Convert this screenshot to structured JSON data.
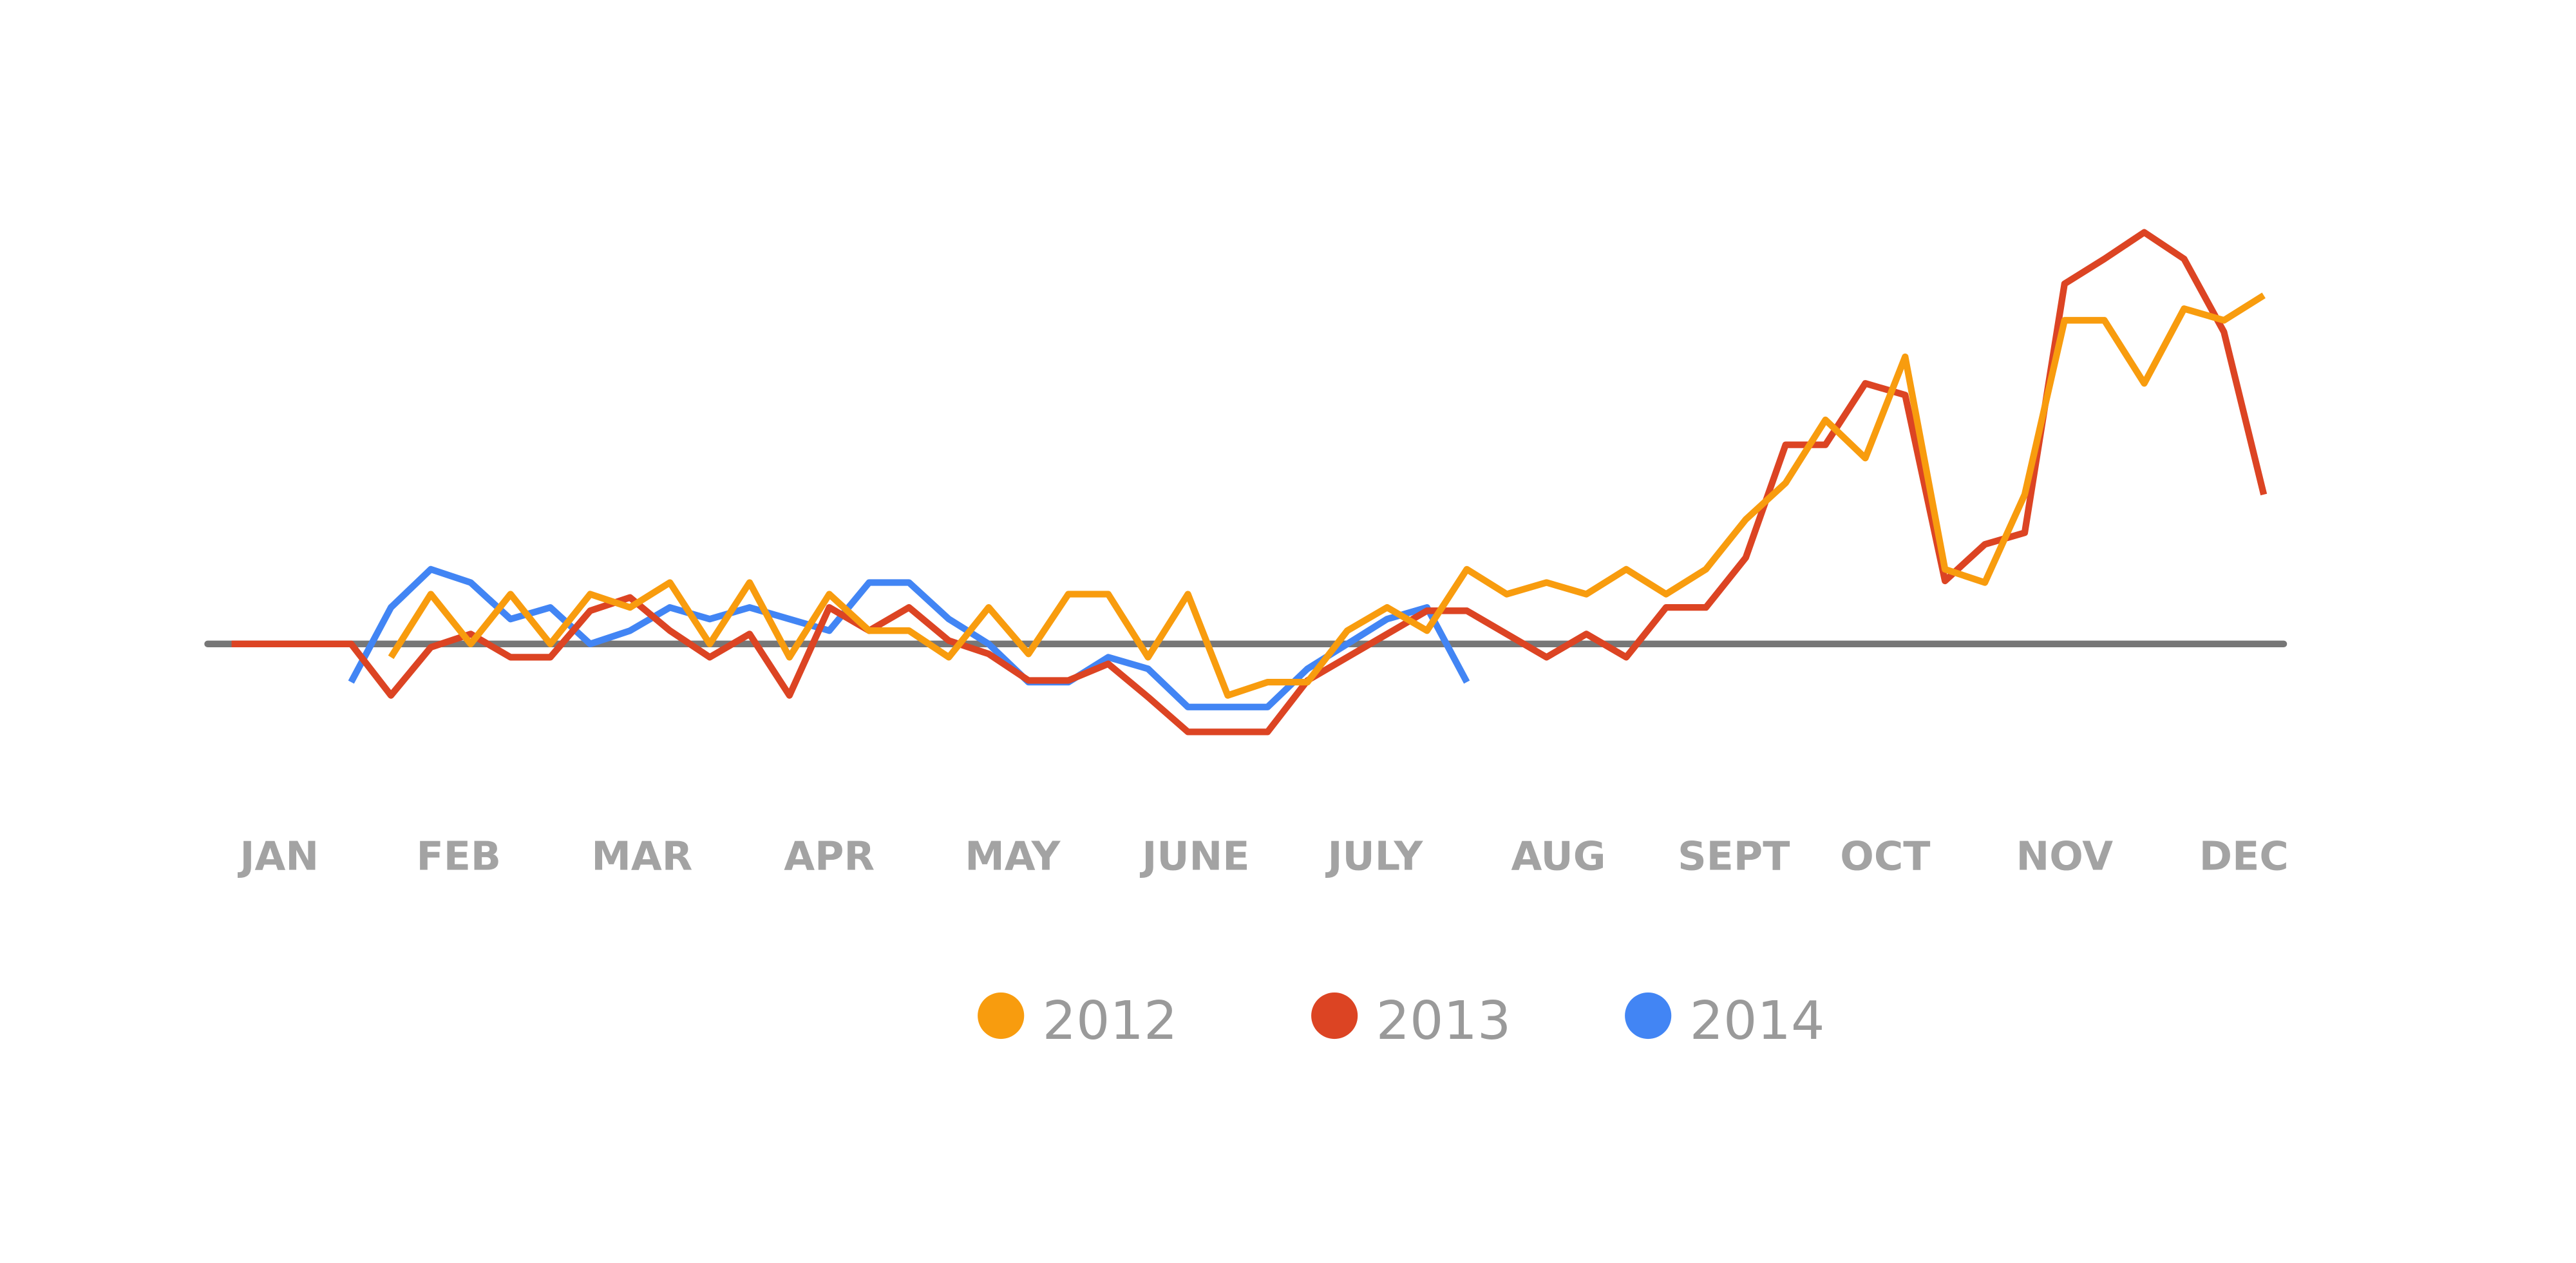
{
  "chart_data": {
    "type": "line",
    "x": [
      0,
      1,
      2,
      3,
      4,
      5,
      6,
      7,
      8,
      9,
      10,
      11,
      12,
      13,
      14,
      15,
      16,
      17,
      18,
      19,
      20,
      21,
      22,
      23,
      24,
      25,
      26,
      27,
      28,
      29,
      30,
      31,
      32,
      33,
      34,
      35,
      36,
      37,
      38,
      39,
      40,
      41,
      42,
      43,
      44,
      45,
      46,
      47,
      48,
      49,
      50,
      51
    ],
    "xlim": [
      -0.6,
      51.5
    ],
    "xticks": [
      {
        "value": 1.2,
        "label": "JAN"
      },
      {
        "value": 5.7,
        "label": "FEB"
      },
      {
        "value": 10.3,
        "label": "MAR"
      },
      {
        "value": 15.0,
        "label": "APR"
      },
      {
        "value": 19.6,
        "label": "MAY"
      },
      {
        "value": 24.2,
        "label": "JUNE"
      },
      {
        "value": 28.7,
        "label": "JULY"
      },
      {
        "value": 33.3,
        "label": "AUG"
      },
      {
        "value": 37.7,
        "label": "SEPT"
      },
      {
        "value": 41.5,
        "label": "OCT"
      },
      {
        "value": 46.0,
        "label": "NOV"
      },
      {
        "value": 50.5,
        "label": "DEC"
      }
    ],
    "ylim": [
      -80,
      280
    ],
    "baseline": 0,
    "series": [
      {
        "name": "2012",
        "color": "#f89c0e",
        "values": [
          null,
          null,
          null,
          null,
          -8,
          30,
          0,
          30,
          0,
          30,
          22,
          37,
          0,
          37,
          -8,
          30,
          8,
          8,
          -8,
          22,
          -6,
          30,
          30,
          -8,
          30,
          -31,
          -23,
          -23,
          8,
          22,
          8,
          45,
          30,
          37,
          30,
          45,
          30,
          45,
          75,
          97,
          135,
          112,
          173,
          45,
          37,
          90,
          195,
          195,
          157,
          202,
          195,
          210
        ]
      },
      {
        "name": "2013",
        "color": "#dc4423",
        "values": [
          0,
          0,
          0,
          0,
          -31,
          -2,
          6,
          -8,
          -8,
          20,
          28,
          8,
          -8,
          6,
          -31,
          22,
          8,
          22,
          2,
          -6,
          -22,
          -22,
          -12,
          -32,
          -53,
          -53,
          -53,
          -22,
          -8,
          6,
          20,
          20,
          6,
          -8,
          6,
          -8,
          22,
          22,
          52,
          120,
          120,
          157,
          150,
          38,
          60,
          67,
          217,
          232,
          248,
          232,
          188,
          90
        ]
      },
      {
        "name": "2014",
        "color": "#4285f4",
        "values": [
          null,
          null,
          null,
          -23,
          22,
          45,
          37,
          15,
          22,
          0,
          8,
          22,
          15,
          22,
          15,
          8,
          37,
          37,
          15,
          0,
          -23,
          -23,
          -8,
          -15,
          -38,
          -38,
          -38,
          -15,
          0,
          15,
          22,
          -23,
          null,
          null,
          null,
          null,
          null,
          null,
          null,
          null,
          null,
          null,
          null,
          null,
          null,
          null,
          null,
          null,
          null,
          null,
          null,
          null
        ]
      }
    ]
  }
}
